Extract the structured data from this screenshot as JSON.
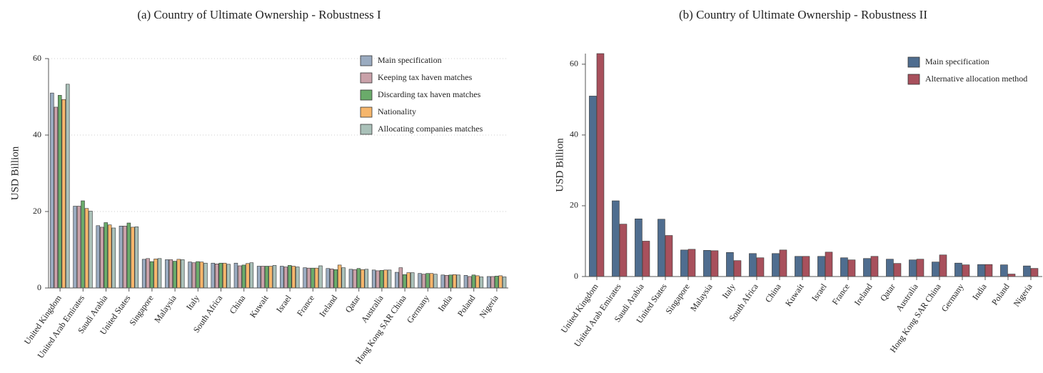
{
  "chart_data": [
    {
      "type": "bar",
      "title": "(a)  Country of Ultimate Ownership - Robustness I",
      "y_label": "USD Billion",
      "categories": [
        "United Kingdom",
        "United Arab Emirates",
        "Saudi Arabia",
        "United States",
        "Singapore",
        "Malaysia",
        "Italy",
        "South Africa",
        "China",
        "Kuwait",
        "Israel",
        "France",
        "Ireland",
        "Qatar",
        "Australia",
        "Hong Kong SAR China",
        "Germany",
        "India",
        "Poland",
        "Nigeria"
      ],
      "series": [
        {
          "name": "Main specification",
          "color": "#9aabc0",
          "values": [
            51,
            21.4,
            16.3,
            16.2,
            7.5,
            7.4,
            6.8,
            6.5,
            6.5,
            5.7,
            5.7,
            5.3,
            5.1,
            4.9,
            4.7,
            4.1,
            3.8,
            3.4,
            3.3,
            3.0
          ]
        },
        {
          "name": "Keeping tax haven matches",
          "color": "#c9a1a9",
          "values": [
            47.3,
            21.4,
            15.9,
            16.2,
            7.7,
            7.4,
            6.6,
            6.3,
            5.8,
            5.7,
            5.5,
            5.2,
            5.0,
            4.8,
            4.5,
            5.3,
            3.6,
            3.3,
            3.0,
            3.0
          ]
        },
        {
          "name": "Discarding tax haven matches",
          "color": "#6aab6a",
          "values": [
            50.4,
            22.8,
            17.1,
            17.0,
            6.9,
            7.0,
            6.9,
            6.5,
            6.0,
            5.7,
            5.9,
            5.2,
            4.8,
            5.1,
            4.6,
            3.5,
            3.8,
            3.4,
            3.4,
            3.1
          ]
        },
        {
          "name": "Nationality",
          "color": "#f6b66c",
          "values": [
            49.3,
            20.8,
            16.5,
            15.9,
            7.6,
            7.5,
            6.8,
            6.5,
            6.4,
            5.7,
            5.7,
            5.2,
            6.0,
            4.8,
            4.7,
            4.0,
            3.8,
            3.5,
            3.2,
            3.2
          ]
        },
        {
          "name": "Allocating companies matches",
          "color": "#aac1b9",
          "values": [
            53.3,
            20.1,
            15.7,
            16.0,
            7.7,
            7.4,
            6.5,
            6.2,
            6.6,
            5.9,
            5.5,
            5.8,
            5.3,
            4.9,
            4.7,
            4.0,
            3.6,
            3.4,
            2.9,
            2.9
          ]
        }
      ],
      "ylim": [
        0,
        60
      ],
      "yticks": [
        0,
        20,
        40,
        60
      ],
      "grid": true
    },
    {
      "type": "bar",
      "title": "(b)  Country of Ultimate Ownership - Robustness II",
      "y_label": "USD Billion",
      "categories": [
        "United Kingdom",
        "United Arab Emirates",
        "Saudi Arabia",
        "United States",
        "Singapore",
        "Malaysia",
        "Italy",
        "South Africa",
        "China",
        "Kuwait",
        "Israel",
        "France",
        "Ireland",
        "Qatar",
        "Australia",
        "Hong Kong SAR China",
        "Germany",
        "India",
        "Poland",
        "Nigeria"
      ],
      "series": [
        {
          "name": "Main specification",
          "color": "#4f6d8f",
          "values": [
            51,
            21.4,
            16.3,
            16.2,
            7.5,
            7.4,
            6.8,
            6.5,
            6.5,
            5.7,
            5.7,
            5.3,
            5.1,
            4.9,
            4.7,
            4.1,
            3.8,
            3.4,
            3.3,
            3.0
          ]
        },
        {
          "name": "Alternative allocation method",
          "color": "#a8505c",
          "values": [
            63,
            14.8,
            10.0,
            11.6,
            7.7,
            7.3,
            4.5,
            5.3,
            7.5,
            5.7,
            6.9,
            4.7,
            5.7,
            3.7,
            4.9,
            6.1,
            3.3,
            3.4,
            0.7,
            2.3
          ]
        }
      ],
      "ylim": [
        0,
        63
      ],
      "yticks": [
        0,
        20,
        40,
        60
      ],
      "grid": false
    }
  ]
}
